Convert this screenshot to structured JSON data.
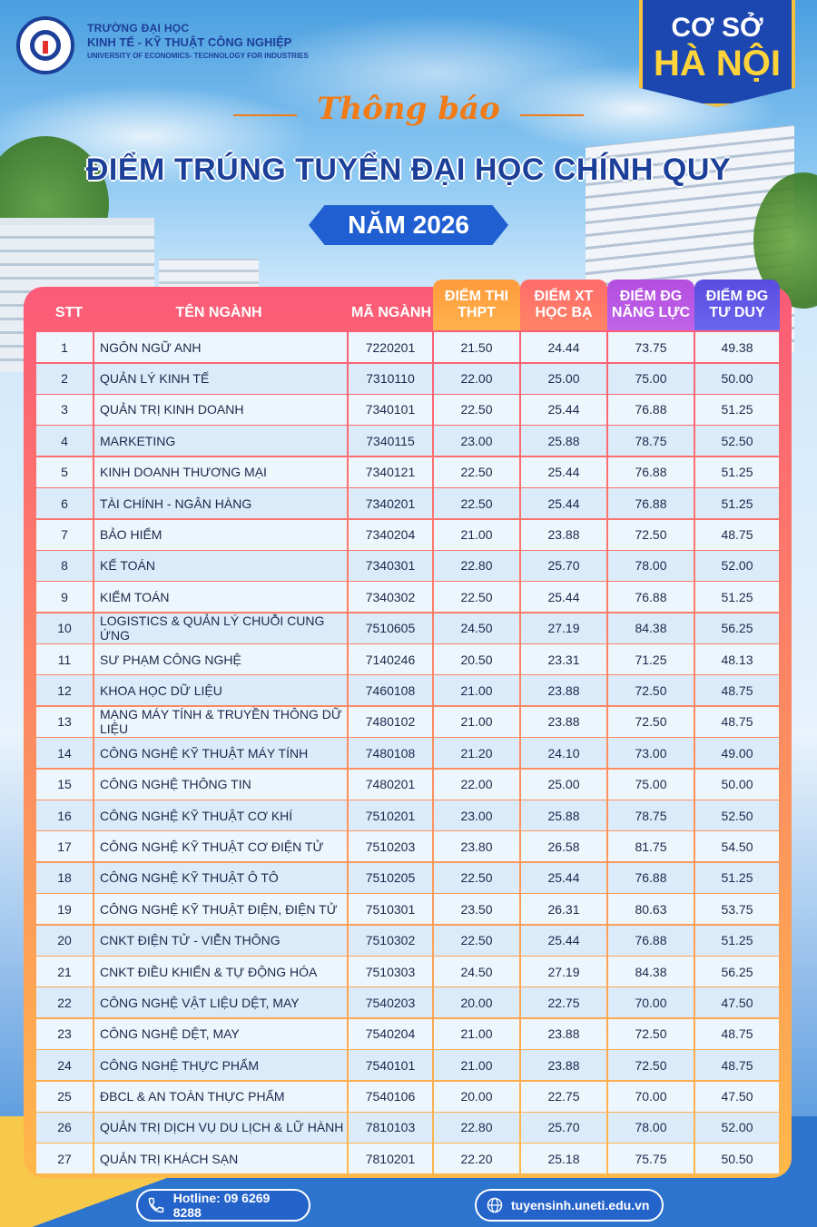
{
  "header": {
    "university_line1": "TRƯỜNG ĐẠI HỌC",
    "university_line2": "KINH TẾ - KỸ THUẬT CÔNG NGHIỆP",
    "university_line3": "UNIVERSITY OF ECONOMICS- TECHNOLOGY FOR INDUSTRIES",
    "campus_line1": "CƠ SỞ",
    "campus_line2": "HÀ NỘI"
  },
  "notice": {
    "label": "Thông báo",
    "title": "ĐIỂM TRÚNG TUYỂN ĐẠI HỌC CHÍNH QUY",
    "year": "NĂM 2026"
  },
  "table": {
    "headers": {
      "stt": "STT",
      "name": "TÊN NGÀNH",
      "code": "MÃ NGÀNH",
      "thpt": "ĐIỂM THI THPT",
      "hocba": "ĐIỂM XT HỌC BẠ",
      "nangluc": "ĐIỂM ĐG NĂNG LỰC",
      "tuduy": "ĐIỂM ĐG TƯ DUY"
    },
    "rows": [
      {
        "stt": "1",
        "name": "NGÔN NGỮ ANH",
        "code": "7220201",
        "thpt": "21.50",
        "hocba": "24.44",
        "nangluc": "73.75",
        "tuduy": "49.38"
      },
      {
        "stt": "2",
        "name": "QUẢN LÝ KINH TẾ",
        "code": "7310110",
        "thpt": "22.00",
        "hocba": "25.00",
        "nangluc": "75.00",
        "tuduy": "50.00"
      },
      {
        "stt": "3",
        "name": "QUẢN TRỊ KINH DOANH",
        "code": "7340101",
        "thpt": "22.50",
        "hocba": "25.44",
        "nangluc": "76.88",
        "tuduy": "51.25"
      },
      {
        "stt": "4",
        "name": "MARKETING",
        "code": "7340115",
        "thpt": "23.00",
        "hocba": "25.88",
        "nangluc": "78.75",
        "tuduy": "52.50"
      },
      {
        "stt": "5",
        "name": "KINH DOANH THƯƠNG MẠI",
        "code": "7340121",
        "thpt": "22.50",
        "hocba": "25.44",
        "nangluc": "76.88",
        "tuduy": "51.25"
      },
      {
        "stt": "6",
        "name": "TÀI CHÍNH - NGÂN HÀNG",
        "code": "7340201",
        "thpt": "22.50",
        "hocba": "25.44",
        "nangluc": "76.88",
        "tuduy": "51.25"
      },
      {
        "stt": "7",
        "name": "BẢO HIỂM",
        "code": "7340204",
        "thpt": "21.00",
        "hocba": "23.88",
        "nangluc": "72.50",
        "tuduy": "48.75"
      },
      {
        "stt": "8",
        "name": "KẾ TOÁN",
        "code": "7340301",
        "thpt": "22.80",
        "hocba": "25.70",
        "nangluc": "78.00",
        "tuduy": "52.00"
      },
      {
        "stt": "9",
        "name": "KIỂM TOÁN",
        "code": "7340302",
        "thpt": "22.50",
        "hocba": "25.44",
        "nangluc": "76.88",
        "tuduy": "51.25"
      },
      {
        "stt": "10",
        "name": "LOGISTICS & QUẢN LÝ CHUỖI CUNG ỨNG",
        "code": "7510605",
        "thpt": "24.50",
        "hocba": "27.19",
        "nangluc": "84.38",
        "tuduy": "56.25"
      },
      {
        "stt": "11",
        "name": "SƯ PHẠM CÔNG NGHỆ",
        "code": "7140246",
        "thpt": "20.50",
        "hocba": "23.31",
        "nangluc": "71.25",
        "tuduy": "48.13"
      },
      {
        "stt": "12",
        "name": "KHOA HỌC DỮ LIỆU",
        "code": "7460108",
        "thpt": "21.00",
        "hocba": "23.88",
        "nangluc": "72.50",
        "tuduy": "48.75"
      },
      {
        "stt": "13",
        "name": "MẠNG MÁY TÍNH & TRUYỀN THÔNG DỮ LIỆU",
        "code": "7480102",
        "thpt": "21.00",
        "hocba": "23.88",
        "nangluc": "72.50",
        "tuduy": "48.75"
      },
      {
        "stt": "14",
        "name": "CÔNG NGHỆ KỸ THUẬT MÁY TÍNH",
        "code": "7480108",
        "thpt": "21.20",
        "hocba": "24.10",
        "nangluc": "73.00",
        "tuduy": "49.00"
      },
      {
        "stt": "15",
        "name": "CÔNG NGHỆ THÔNG TIN",
        "code": "7480201",
        "thpt": "22.00",
        "hocba": "25.00",
        "nangluc": "75.00",
        "tuduy": "50.00"
      },
      {
        "stt": "16",
        "name": "CÔNG NGHỆ KỸ THUẬT CƠ KHÍ",
        "code": "7510201",
        "thpt": "23.00",
        "hocba": "25.88",
        "nangluc": "78.75",
        "tuduy": "52.50"
      },
      {
        "stt": "17",
        "name": "CÔNG NGHỆ KỸ THUẬT CƠ ĐIỆN TỬ",
        "code": "7510203",
        "thpt": "23.80",
        "hocba": "26.58",
        "nangluc": "81.75",
        "tuduy": "54.50"
      },
      {
        "stt": "18",
        "name": "CÔNG NGHỆ KỸ THUẬT Ô TÔ",
        "code": "7510205",
        "thpt": "22.50",
        "hocba": "25.44",
        "nangluc": "76.88",
        "tuduy": "51.25"
      },
      {
        "stt": "19",
        "name": "CÔNG NGHỆ KỸ THUẬT ĐIỆN, ĐIỆN TỬ",
        "code": "7510301",
        "thpt": "23.50",
        "hocba": "26.31",
        "nangluc": "80.63",
        "tuduy": "53.75"
      },
      {
        "stt": "20",
        "name": "CNKT ĐIỆN TỬ - VIỄN THÔNG",
        "code": "7510302",
        "thpt": "22.50",
        "hocba": "25.44",
        "nangluc": "76.88",
        "tuduy": "51.25"
      },
      {
        "stt": "21",
        "name": "CNKT ĐIỀU KHIỂN & TỰ ĐỘNG HÓA",
        "code": "7510303",
        "thpt": "24.50",
        "hocba": "27.19",
        "nangluc": "84.38",
        "tuduy": "56.25"
      },
      {
        "stt": "22",
        "name": "CÔNG NGHỆ VẬT LIỆU DỆT, MAY",
        "code": "7540203",
        "thpt": "20.00",
        "hocba": "22.75",
        "nangluc": "70.00",
        "tuduy": "47.50"
      },
      {
        "stt": "23",
        "name": "CÔNG NGHỆ DỆT, MAY",
        "code": "7540204",
        "thpt": "21.00",
        "hocba": "23.88",
        "nangluc": "72.50",
        "tuduy": "48.75"
      },
      {
        "stt": "24",
        "name": "CÔNG NGHỆ THỰC PHẨM",
        "code": "7540101",
        "thpt": "21.00",
        "hocba": "23.88",
        "nangluc": "72.50",
        "tuduy": "48.75"
      },
      {
        "stt": "25",
        "name": "ĐBCL & AN TOÀN THỰC PHẨM",
        "code": "7540106",
        "thpt": "20.00",
        "hocba": "22.75",
        "nangluc": "70.00",
        "tuduy": "47.50"
      },
      {
        "stt": "26",
        "name": "QUẢN TRỊ DỊCH VỤ DU LỊCH & LỮ HÀNH",
        "code": "7810103",
        "thpt": "22.80",
        "hocba": "25.70",
        "nangluc": "78.00",
        "tuduy": "52.00"
      },
      {
        "stt": "27",
        "name": "QUẢN TRỊ KHÁCH SẠN",
        "code": "7810201",
        "thpt": "22.20",
        "hocba": "25.18",
        "nangluc": "75.75",
        "tuduy": "50.50"
      }
    ]
  },
  "footer": {
    "hotline": "Hotline: 09 6269 8288",
    "website": "tuyensinh.uneti.edu.vn",
    "hotline_icon": "phone-icon",
    "website_icon": "globe-icon"
  },
  "colors": {
    "brand_blue": "#1c3f99",
    "accent_orange": "#f07b17",
    "badge_yellow": "#ffd43b"
  }
}
